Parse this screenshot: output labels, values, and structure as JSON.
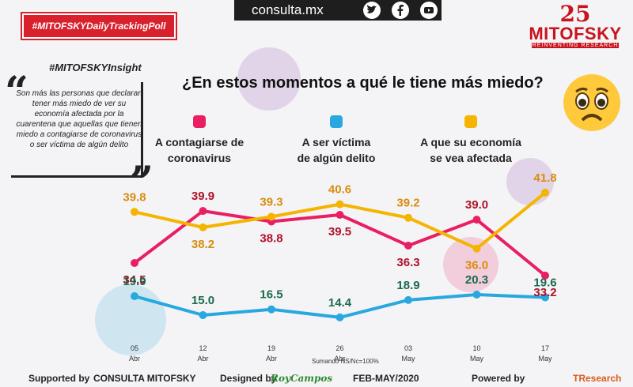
{
  "header": {
    "site": "consulta.mx",
    "tag": "#MITOFSKYDailyTrackingPoll",
    "logo_number": "25",
    "logo_name": "MITOFSKY",
    "logo_sub": "REINVENTING RESEARCH",
    "icons": [
      "twitter-icon",
      "facebook-icon",
      "youtube-icon"
    ]
  },
  "insight": {
    "tag": "#MITOFSKYInsight",
    "text": "Son más las personas que declaran tener más miedo de ver su economía afectada por la cuarentena que aquellas que tienen miedo a contagiarse de coronavirus o ser víctima de algún delito"
  },
  "question": "¿En estos momentos a qué le tiene más miedo?",
  "legend": [
    {
      "line1": "A contagiarse de",
      "line2": "coronavirus",
      "color": "#e91e63"
    },
    {
      "line1": "A ser víctima",
      "line2": "de algún delito",
      "color": "#29a8e0"
    },
    {
      "line1": "A que su economía",
      "line2": "se vea afectada",
      "color": "#f5b400"
    }
  ],
  "chart_data": {
    "type": "line",
    "title": "¿En estos momentos a qué le tiene más miedo?",
    "x": [
      {
        "day": "05",
        "month": "Abr"
      },
      {
        "day": "12",
        "month": "Abr"
      },
      {
        "day": "19",
        "month": "Abr"
      },
      {
        "day": "26",
        "month": "Abr"
      },
      {
        "day": "03",
        "month": "May"
      },
      {
        "day": "10",
        "month": "May"
      },
      {
        "day": "17",
        "month": "May"
      }
    ],
    "series": [
      {
        "name": "A contagiarse de coronavirus",
        "color": "#e91e63",
        "label_color": "#b0122a",
        "values": [
          34.5,
          39.9,
          38.8,
          39.5,
          36.3,
          39.0,
          33.2
        ]
      },
      {
        "name": "A ser víctima de algún delito",
        "color": "#29a8e0",
        "label_color": "#1c6a4c",
        "values": [
          19.9,
          15.0,
          16.5,
          14.4,
          18.9,
          20.3,
          19.6
        ]
      },
      {
        "name": "A que su economía se vea afectada",
        "color": "#f5b400",
        "label_color": "#d98c0f",
        "values": [
          39.8,
          38.2,
          39.3,
          40.6,
          39.2,
          36.0,
          41.8
        ]
      }
    ]
  },
  "footer": {
    "supported": "Supported by",
    "brand": "CONSULTA  MITOFSKY",
    "designed": "Designed by",
    "designer": "RoyCampos",
    "period": "FEB-MAY/2020",
    "powered": "Powered by",
    "powered_brand": "TResearch",
    "sum_note": "Sumando NS/Nc=100%"
  }
}
